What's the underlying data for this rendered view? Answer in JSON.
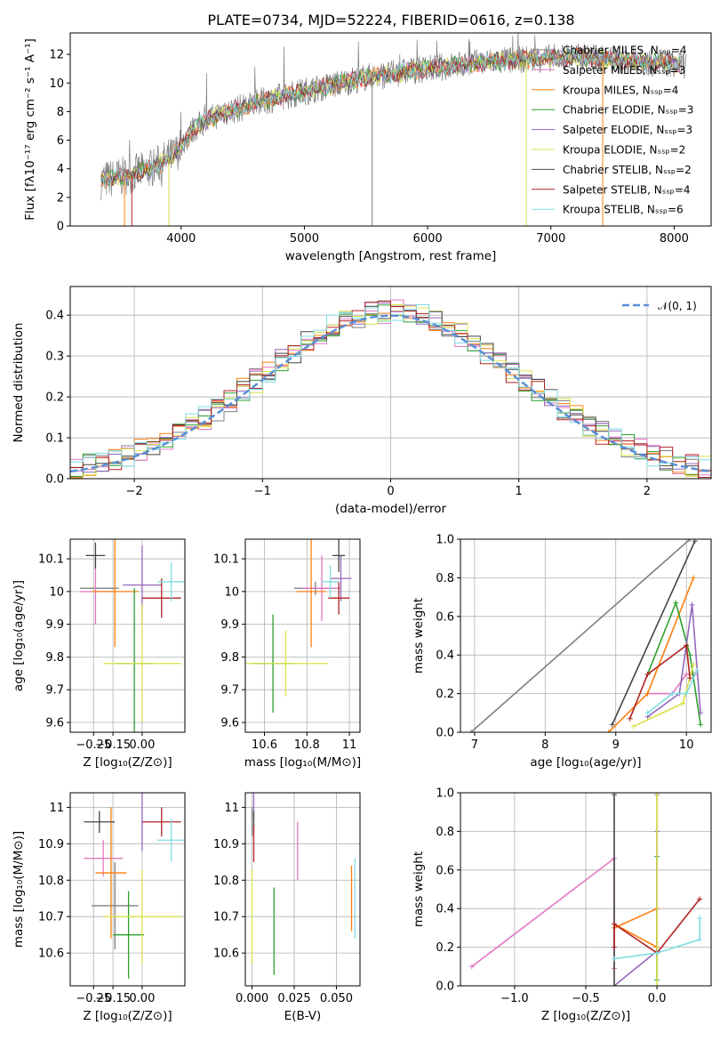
{
  "title": "PLATE=0734, MJD=52224, FIBERID=0616, z=0.138",
  "colors": {
    "s0": "#7f7f7f",
    "s1": "#e377c2",
    "s2": "#ff7f0e",
    "s3": "#2ca02c",
    "s4": "#9467bd",
    "s5": "#dbe24a",
    "s6": "#444444",
    "s7": "#b22222",
    "s8": "#7fdde2",
    "normal": "#5a8fd6"
  },
  "chart_data": [
    {
      "type": "line",
      "id": "spectrum",
      "xlabel": "wavelength [Angstrom, rest frame]",
      "ylabel": "Flux [fλ10⁻¹⁷ erg cm⁻² s⁻¹ A⁻¹]",
      "xlim": [
        3100,
        8300
      ],
      "ylim": [
        0,
        13.5
      ],
      "xticks": [
        4000,
        5000,
        6000,
        7000,
        8000
      ],
      "yticks": [
        0,
        2,
        4,
        6,
        8,
        10,
        12
      ],
      "grid": false,
      "legend_position": "top-right",
      "continuum": {
        "x": [
          3350,
          3550,
          3750,
          3950,
          4100,
          4300,
          4500,
          4700,
          4900,
          5100,
          5300,
          5500,
          5700,
          5900,
          6100,
          6300,
          6500,
          6700,
          6900,
          7100,
          7300,
          7500,
          7700,
          7900,
          8050
        ],
        "y": [
          3.2,
          3.5,
          4.0,
          5.0,
          6.8,
          7.8,
          8.3,
          8.8,
          9.2,
          9.6,
          10.0,
          10.4,
          10.6,
          10.9,
          11.1,
          11.3,
          11.5,
          11.6,
          11.7,
          11.8,
          11.8,
          11.6,
          11.5,
          11.4,
          11.3
        ]
      },
      "series": [
        {
          "name": "Chabrier MILES, Nₛₛₚ=4"
        },
        {
          "name": "Salpeter MILES, Nₛₛₚ=3"
        },
        {
          "name": "Kroupa MILES, Nₛₛₚ=4"
        },
        {
          "name": "Chabrier ELODIE, Nₛₛₚ=3"
        },
        {
          "name": "Salpeter ELODIE, Nₛₛₚ=3"
        },
        {
          "name": "Kroupa ELODIE, Nₛₛₚ=2"
        },
        {
          "name": "Chabrier STELIB, Nₛₛₚ=2"
        },
        {
          "name": "Salpeter STELIB, Nₛₛₚ=4"
        },
        {
          "name": "Kroupa STELIB, Nₛₛₚ=6"
        }
      ]
    },
    {
      "type": "histogram",
      "id": "residuals",
      "xlabel": "(data-model)/error",
      "ylabel": "Normed distribution",
      "xlim": [
        -2.5,
        2.5
      ],
      "ylim": [
        0,
        0.47
      ],
      "xticks": [
        -2,
        -1,
        0,
        1,
        2
      ],
      "yticks": [
        0.0,
        0.1,
        0.2,
        0.3,
        0.4
      ],
      "grid": true,
      "legend_position": "top-right",
      "normal_label": "𝒩(0, 1)",
      "bin_edges_start": -2.5,
      "bin_width": 0.1,
      "bin_count": 50
    },
    {
      "type": "errorbar",
      "id": "age-vs-Z",
      "xlabel": "Z [log₁₀(Z/Z⊙)]",
      "ylabel": "age  [log₁₀(age/yr)]",
      "xlim": [
        -0.37,
        0.22
      ],
      "ylim": [
        9.57,
        10.16
      ],
      "xticks": [
        -0.25,
        -0.15,
        0.0
      ],
      "xticklabels": [
        "−0.25",
        "−0.15",
        "0.00"
      ],
      "yticks": [
        9.6,
        9.7,
        9.8,
        9.9,
        10.0,
        10.1
      ],
      "grid": true,
      "points": [
        {
          "x": -0.22,
          "y": 10.01,
          "xerr": 0.1,
          "yerr": 0.0
        },
        {
          "x": -0.24,
          "y": 10.0,
          "xerr": 0.08,
          "yerr": 0.1
        },
        {
          "x": -0.14,
          "y": 10.0,
          "xerr": 0.12,
          "yerr": 0.17
        },
        {
          "x": -0.04,
          "y": 9.78,
          "xerr": 0.1,
          "yerr": 0.23
        },
        {
          "x": 0.0,
          "y": 10.02,
          "xerr": 0.1,
          "yerr": 0.12
        },
        {
          "x": 0.0,
          "y": 9.78,
          "xerr": 0.2,
          "yerr": 0.18
        },
        {
          "x": -0.24,
          "y": 10.11,
          "xerr": 0.05,
          "yerr": 0.04
        },
        {
          "x": 0.1,
          "y": 9.98,
          "xerr": 0.1,
          "yerr": 0.06
        },
        {
          "x": 0.15,
          "y": 10.03,
          "xerr": 0.07,
          "yerr": 0.06
        }
      ]
    },
    {
      "type": "errorbar",
      "id": "age-vs-mass",
      "xlabel": "mass [log₁₀(M/M⊙)]",
      "xlim": [
        10.51,
        11.05
      ],
      "ylim": [
        9.57,
        10.16
      ],
      "xticks": [
        10.6,
        10.8,
        11.0
      ],
      "yticks": [
        9.6,
        9.7,
        9.8,
        9.9,
        10.0,
        10.1
      ],
      "grid": true,
      "points": [
        {
          "x": 10.84,
          "y": 10.01,
          "xerr": 0.1,
          "yerr": 0.02
        },
        {
          "x": 10.87,
          "y": 10.01,
          "xerr": 0.09,
          "yerr": 0.1
        },
        {
          "x": 10.82,
          "y": 10.0,
          "xerr": 0.07,
          "yerr": 0.17
        },
        {
          "x": 10.64,
          "y": 9.78,
          "xerr": 0.1,
          "yerr": 0.15
        },
        {
          "x": 10.96,
          "y": 10.04,
          "xerr": 0.05,
          "yerr": 0.07
        },
        {
          "x": 10.7,
          "y": 9.78,
          "xerr": 0.2,
          "yerr": 0.1
        },
        {
          "x": 10.95,
          "y": 10.11,
          "xerr": 0.03,
          "yerr": 0.05
        },
        {
          "x": 10.95,
          "y": 9.98,
          "xerr": 0.05,
          "yerr": 0.05
        },
        {
          "x": 10.91,
          "y": 10.03,
          "xerr": 0.04,
          "yerr": 0.05
        }
      ]
    },
    {
      "type": "line",
      "id": "weight-vs-age",
      "xlabel": "age  [log₁₀(age/yr)]",
      "ylabel": "mass weight",
      "xlim": [
        6.8,
        10.35
      ],
      "ylim": [
        0,
        1
      ],
      "xticks": [
        7,
        8,
        9,
        10
      ],
      "yticks": [
        0.0,
        0.2,
        0.4,
        0.6,
        0.8,
        1.0
      ],
      "grid": true,
      "lines": [
        {
          "x": [
            6.95,
            10.05
          ],
          "y": [
            0.0,
            1.0
          ]
        },
        {
          "x": [
            9.45,
            9.8,
            10.0,
            10.12
          ],
          "y": [
            0.2,
            0.2,
            0.3,
            0.3
          ]
        },
        {
          "x": [
            8.9,
            9.45,
            10.1
          ],
          "y": [
            0.0,
            0.2,
            0.8
          ]
        },
        {
          "x": [
            9.45,
            9.85,
            10.05,
            10.2
          ],
          "y": [
            0.3,
            0.67,
            0.4,
            0.04
          ]
        },
        {
          "x": [
            9.45,
            9.9,
            10.08,
            10.2
          ],
          "y": [
            0.08,
            0.2,
            0.66,
            0.1
          ]
        },
        {
          "x": [
            9.25,
            9.95,
            10.1
          ],
          "y": [
            0.03,
            0.15,
            0.35
          ]
        },
        {
          "x": [
            8.95,
            10.12
          ],
          "y": [
            0.04,
            0.99
          ]
        },
        {
          "x": [
            9.2,
            9.45,
            10.0,
            10.05
          ],
          "y": [
            0.07,
            0.3,
            0.45,
            0.28
          ]
        },
        {
          "x": [
            9.45,
            9.8,
            10.0,
            10.15
          ],
          "y": [
            0.1,
            0.2,
            0.2,
            0.32
          ]
        }
      ]
    },
    {
      "type": "errorbar",
      "id": "mass-vs-Z",
      "xlabel": "Z [log₁₀(Z/Z⊙)]",
      "ylabel": "mass [log₁₀(M/M⊙)]",
      "xlim": [
        -0.37,
        0.22
      ],
      "ylim": [
        10.51,
        11.04
      ],
      "xticks": [
        -0.25,
        -0.15,
        0.0
      ],
      "xticklabels": [
        "−0.25",
        "−0.15",
        "0.00"
      ],
      "yticks": [
        10.6,
        10.7,
        10.8,
        10.9,
        11.0
      ],
      "grid": true,
      "points": [
        {
          "x": -0.14,
          "y": 10.73,
          "xerr": 0.12,
          "yerr": 0.12
        },
        {
          "x": -0.2,
          "y": 10.86,
          "xerr": 0.1,
          "yerr": 0.05
        },
        {
          "x": -0.16,
          "y": 10.82,
          "xerr": 0.08,
          "yerr": 0.18
        },
        {
          "x": -0.07,
          "y": 10.65,
          "xerr": 0.08,
          "yerr": 0.12
        },
        {
          "x": 0.0,
          "y": 11.0,
          "xerr": 0.0,
          "yerr": 0.12
        },
        {
          "x": 0.0,
          "y": 10.7,
          "xerr": 0.2,
          "yerr": 0.13
        },
        {
          "x": -0.22,
          "y": 10.96,
          "xerr": 0.08,
          "yerr": 0.03
        },
        {
          "x": 0.1,
          "y": 10.96,
          "xerr": 0.1,
          "yerr": 0.04
        },
        {
          "x": 0.15,
          "y": 10.91,
          "xerr": 0.07,
          "yerr": 0.06
        }
      ]
    },
    {
      "type": "errorbar",
      "id": "mass-vs-ebv",
      "xlabel": "E(B-V)",
      "xlim": [
        -0.004,
        0.064
      ],
      "ylim": [
        10.51,
        11.04
      ],
      "xticks": [
        0.0,
        0.025,
        0.05
      ],
      "xticklabels": [
        "0.000",
        "0.025",
        "0.050"
      ],
      "yticks": [
        10.6,
        10.7,
        10.8,
        10.9,
        11.0
      ],
      "grid": true,
      "points": [
        {
          "x": 0.0,
          "y": 10.96,
          "xerr": 0.0,
          "yerr": 0.04
        },
        {
          "x": 0.027,
          "y": 10.88,
          "xerr": 0.0,
          "yerr": 0.08
        },
        {
          "x": 0.059,
          "y": 10.75,
          "xerr": 0.0,
          "yerr": 0.09
        },
        {
          "x": 0.013,
          "y": 10.66,
          "xerr": 0.0,
          "yerr": 0.12
        },
        {
          "x": 0.001,
          "y": 11.05,
          "xerr": 0.0,
          "yerr": 0.08
        },
        {
          "x": 0.0,
          "y": 10.7,
          "xerr": 0.0,
          "yerr": 0.13
        },
        {
          "x": 0.001,
          "y": 10.96,
          "xerr": 0.0,
          "yerr": 0.03
        },
        {
          "x": 0.001,
          "y": 10.9,
          "xerr": 0.0,
          "yerr": 0.05
        },
        {
          "x": 0.061,
          "y": 10.75,
          "xerr": 0.0,
          "yerr": 0.11
        }
      ]
    },
    {
      "type": "line",
      "id": "weight-vs-Z",
      "xlabel": "Z [log₁₀(Z/Z⊙)]",
      "ylabel": "mass weight",
      "xlim": [
        -1.38,
        0.38
      ],
      "ylim": [
        0,
        1
      ],
      "xticks": [
        -1.0,
        -0.5,
        0.0
      ],
      "xticklabels": [
        "−1.0",
        "−0.5",
        "0.0"
      ],
      "yticks": [
        0.0,
        0.2,
        0.4,
        0.6,
        0.8,
        1.0
      ],
      "grid": true,
      "lines": [
        {
          "x": [
            0.0,
            0.0
          ],
          "y": [
            0.03,
            0.99
          ]
        },
        {
          "x": [
            -1.3,
            -0.3,
            -0.3
          ],
          "y": [
            0.1,
            0.66,
            0.09
          ]
        },
        {
          "x": [
            -0.3,
            0.0,
            0.0,
            -0.3
          ],
          "y": [
            0.3,
            0.4,
            0.2,
            0.32
          ]
        },
        {
          "x": [
            0.0,
            0.0
          ],
          "y": [
            0.03,
            0.67
          ]
        },
        {
          "x": [
            -0.3,
            0.0,
            0.0
          ],
          "y": [
            0.0,
            0.18,
            0.8
          ]
        },
        {
          "x": [
            0.0,
            0.0
          ],
          "y": [
            0.0,
            1.0
          ]
        },
        {
          "x": [
            -0.3,
            -0.3
          ],
          "y": [
            0.0,
            0.99
          ]
        },
        {
          "x": [
            -0.3,
            -0.3,
            0.0,
            0.3
          ],
          "y": [
            0.2,
            0.32,
            0.17,
            0.45
          ]
        },
        {
          "x": [
            -0.3,
            0.0,
            0.3,
            0.3
          ],
          "y": [
            0.14,
            0.17,
            0.24,
            0.35
          ]
        }
      ]
    }
  ]
}
